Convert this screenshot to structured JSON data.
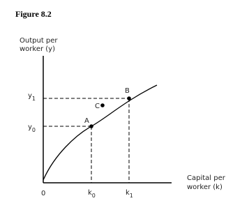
{
  "figure_label": "Figure 8.2",
  "y_axis_label": [
    "Output per",
    "worker (y)"
  ],
  "x_axis_label": [
    "Capital per",
    "worker (k)"
  ],
  "origin": "0",
  "x_ticks": [
    {
      "base": "k",
      "sub": "0"
    },
    {
      "base": "k",
      "sub": "1"
    }
  ],
  "y_ticks": [
    {
      "base": "y",
      "sub": "0"
    },
    {
      "base": "y",
      "sub": "1"
    }
  ],
  "points": [
    "A",
    "B",
    "C"
  ]
}
